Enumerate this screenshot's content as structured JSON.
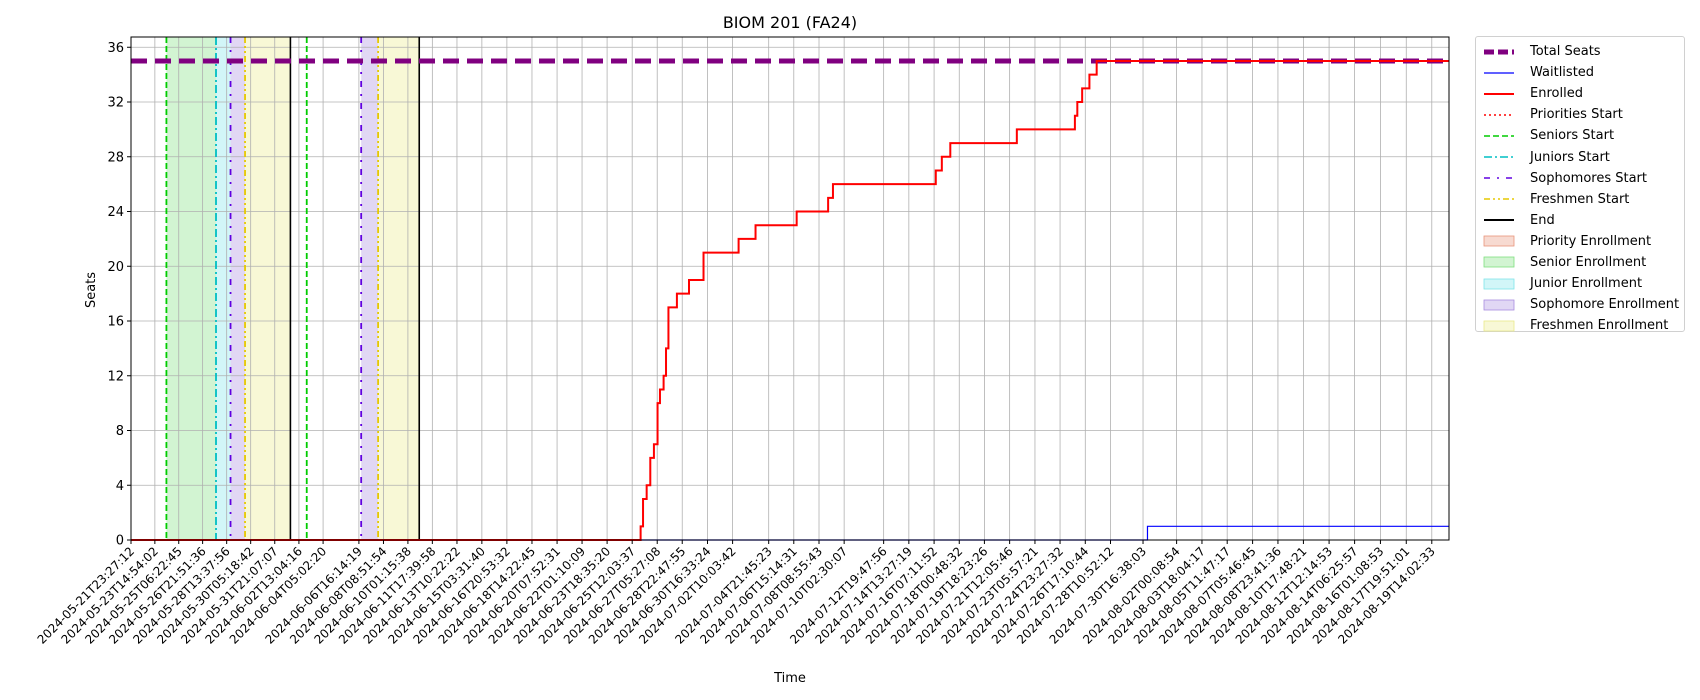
{
  "chart_data": {
    "type": "line",
    "title": "BIOM 201 (FA24)",
    "xlabel": "Time",
    "ylabel": "Seats",
    "ylim": [
      0,
      36.75
    ],
    "yticks": [
      0,
      4,
      8,
      12,
      16,
      20,
      24,
      28,
      32,
      36
    ],
    "xlim": [
      "2024-05-21T23:27:12",
      "2024-08-20T18:30:00"
    ],
    "grid": true,
    "legend_position": "outside-right-top",
    "xtick_labels": [
      "2024-05-21T23:27:12",
      "2024-05-23T14:54:02",
      "2024-05-25T06:22:45",
      "2024-05-26T21:51:36",
      "2024-05-28T13:37:56",
      "2024-05-30T05:18:42",
      "2024-05-31T21:07:07",
      "2024-06-02T13:04:16",
      "2024-06-04T05:02:20",
      "2024-06-06T16:14:19",
      "2024-06-08T08:51:54",
      "2024-06-10T01:15:38",
      "2024-06-11T17:39:58",
      "2024-06-13T10:22:22",
      "2024-06-15T03:31:40",
      "2024-06-16T20:53:32",
      "2024-06-18T14:22:45",
      "2024-06-20T07:52:31",
      "2024-06-22T01:10:09",
      "2024-06-23T18:35:20",
      "2024-06-25T12:03:37",
      "2024-06-27T05:27:08",
      "2024-06-28T22:47:55",
      "2024-06-30T16:33:24",
      "2024-07-02T10:03:42",
      "2024-07-04T21:45:23",
      "2024-07-06T15:14:31",
      "2024-07-08T08:55:43",
      "2024-07-10T02:30:07",
      "2024-07-12T19:47:56",
      "2024-07-14T13:27:19",
      "2024-07-16T07:11:52",
      "2024-07-18T00:48:32",
      "2024-07-19T18:23:26",
      "2024-07-21T12:05:46",
      "2024-07-23T05:57:21",
      "2024-07-24T23:27:32",
      "2024-07-26T17:10:44",
      "2024-07-28T10:52:12",
      "2024-07-30T16:38:03",
      "2024-08-02T00:08:54",
      "2024-08-03T18:04:17",
      "2024-08-05T11:47:17",
      "2024-08-07T05:46:45",
      "2024-08-08T23:41:36",
      "2024-08-10T17:48:21",
      "2024-08-12T12:14:53",
      "2024-08-14T06:25:57",
      "2024-08-16T01:08:53",
      "2024-08-17T19:51:01",
      "2024-08-19T14:02:33"
    ],
    "series": [
      {
        "name": "Total Seats",
        "color": "#800080",
        "style": "dashed-thick",
        "x": [
          "2024-05-21T23:27:12",
          "2024-08-20T18:30:00"
        ],
        "y": [
          35,
          35
        ]
      },
      {
        "name": "Waitlisted",
        "color": "#0000ff",
        "style": "solid-thin",
        "step": true,
        "x": [
          "2024-05-21T23:27:12",
          "2024-07-31T00:00:00",
          "2024-08-20T18:30:00"
        ],
        "y": [
          0,
          1,
          1
        ]
      },
      {
        "name": "Enrolled",
        "color": "#ff0000",
        "style": "solid",
        "step": true,
        "x": [
          "2024-05-21T23:27:12",
          "2024-06-26T02:00:00",
          "2024-06-26T06:00:00",
          "2024-06-26T12:00:00",
          "2024-06-26T18:00:00",
          "2024-06-27T00:00:00",
          "2024-06-27T06:00:00",
          "2024-06-27T10:00:00",
          "2024-06-27T16:00:00",
          "2024-06-27T20:00:00",
          "2024-06-28T00:00:00",
          "2024-06-28T04:00:00",
          "2024-06-28T14:00:00",
          "2024-06-28T18:00:00",
          "2024-06-29T10:00:00",
          "2024-06-30T10:00:00",
          "2024-07-02T20:00:00",
          "2024-07-04T00:00:00",
          "2024-07-06T00:00:00",
          "2024-07-06T20:00:00",
          "2024-07-09T00:00:00",
          "2024-07-09T08:00:00",
          "2024-07-10T00:00:00",
          "2024-07-16T10:00:00",
          "2024-07-16T20:00:00",
          "2024-07-17T10:00:00",
          "2024-07-18T00:00:00",
          "2024-07-22T00:00:00",
          "2024-07-26T00:00:00",
          "2024-07-26T04:00:00",
          "2024-07-26T12:00:00",
          "2024-07-27T00:00:00",
          "2024-07-27T12:00:00",
          "2024-07-28T00:00:00",
          "2024-08-20T18:30:00"
        ],
        "y": [
          0,
          1,
          3,
          4,
          6,
          7,
          10,
          11,
          12,
          14,
          17,
          17,
          18,
          18,
          19,
          21,
          22,
          23,
          23,
          24,
          25,
          26,
          26,
          27,
          28,
          29,
          29,
          30,
          31,
          32,
          33,
          34,
          35,
          35,
          35
        ]
      }
    ],
    "vertical_lines": [
      {
        "name": "Priorities Start",
        "color": "#ff0000",
        "style": "dotted",
        "x": []
      },
      {
        "name": "Seniors Start",
        "color": "#00cc00",
        "style": "dashed",
        "x": [
          "2024-05-24T10:00:00",
          "2024-06-03T02:00:00"
        ]
      },
      {
        "name": "Juniors Start",
        "color": "#00bfc4",
        "style": "dashdot",
        "x": [
          "2024-05-27T20:00:00"
        ]
      },
      {
        "name": "Sophomores Start",
        "color": "#6000e0",
        "style": "loosely-dashdot",
        "x": [
          "2024-05-28T20:00:00",
          "2024-06-06T20:00:00"
        ]
      },
      {
        "name": "Freshmen Start",
        "color": "#e6c800",
        "style": "dashdotdot",
        "x": [
          "2024-05-29T20:00:00",
          "2024-06-08T00:00:00"
        ]
      },
      {
        "name": "End",
        "color": "#000000",
        "style": "solid",
        "x": [
          "2024-06-01T23:00:00",
          "2024-06-10T20:00:00"
        ]
      }
    ],
    "shaded_regions": [
      {
        "name": "Priority Enrollment",
        "color": "#e8957a",
        "spans": []
      },
      {
        "name": "Senior Enrollment",
        "color": "#7fe07f",
        "spans": [
          [
            "2024-05-24T10:00:00",
            "2024-05-27T20:00:00"
          ]
        ]
      },
      {
        "name": "Junior Enrollment",
        "color": "#7fe5ea",
        "spans": [
          [
            "2024-05-27T20:00:00",
            "2024-05-28T20:00:00"
          ]
        ]
      },
      {
        "name": "Sophomore Enrollment",
        "color": "#a98de0",
        "spans": [
          [
            "2024-05-28T20:00:00",
            "2024-05-29T20:00:00"
          ],
          [
            "2024-06-06T20:00:00",
            "2024-06-08T00:00:00"
          ]
        ]
      },
      {
        "name": "Freshmen Enrollment",
        "color": "#eaea8a",
        "spans": [
          [
            "2024-05-29T20:00:00",
            "2024-06-01T23:00:00"
          ],
          [
            "2024-06-08T00:00:00",
            "2024-06-10T20:00:00"
          ]
        ]
      }
    ],
    "legend": [
      {
        "label": "Total Seats",
        "kind": "line",
        "color": "#800080",
        "style": "dashed-thick"
      },
      {
        "label": "Waitlisted",
        "kind": "line",
        "color": "#0000ff",
        "style": "solid-thin"
      },
      {
        "label": "Enrolled",
        "kind": "line",
        "color": "#ff0000",
        "style": "solid"
      },
      {
        "label": "Priorities Start",
        "kind": "line",
        "color": "#ff0000",
        "style": "dotted"
      },
      {
        "label": "Seniors Start",
        "kind": "line",
        "color": "#00cc00",
        "style": "dashed"
      },
      {
        "label": "Juniors Start",
        "kind": "line",
        "color": "#00bfc4",
        "style": "dashdot"
      },
      {
        "label": "Sophomores Start",
        "kind": "line",
        "color": "#6000e0",
        "style": "loosely-dashdot"
      },
      {
        "label": "Freshmen Start",
        "kind": "line",
        "color": "#e6c800",
        "style": "dashdotdot"
      },
      {
        "label": "End",
        "kind": "line",
        "color": "#000000",
        "style": "solid"
      },
      {
        "label": "Priority Enrollment",
        "kind": "patch",
        "color": "#e8957a"
      },
      {
        "label": "Senior Enrollment",
        "kind": "patch",
        "color": "#7fe07f"
      },
      {
        "label": "Junior Enrollment",
        "kind": "patch",
        "color": "#7fe5ea"
      },
      {
        "label": "Sophomore Enrollment",
        "kind": "patch",
        "color": "#a98de0"
      },
      {
        "label": "Freshmen Enrollment",
        "kind": "patch",
        "color": "#eaea8a"
      }
    ]
  }
}
